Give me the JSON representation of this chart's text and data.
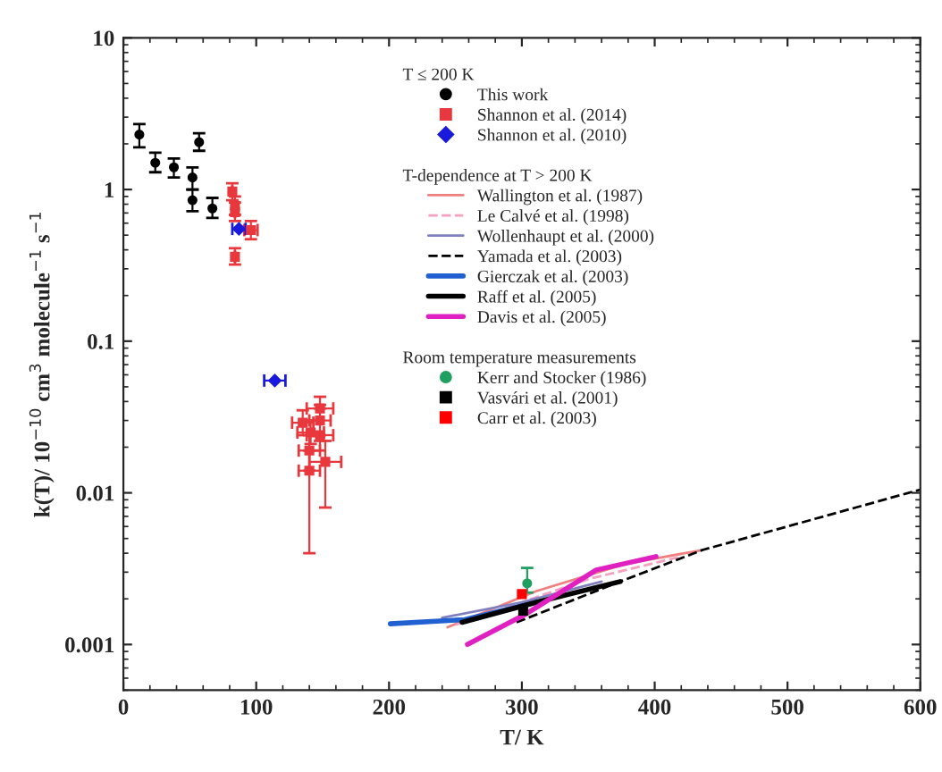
{
  "chart_data": {
    "type": "scatter",
    "xlabel": "T/ K",
    "ylabel": "k(T)/ 10$^{−10}$ cm$^{3}$ molecule$^{−1}$ s$^{−1}$",
    "xlim": [
      0,
      600
    ],
    "xticks": [
      0,
      100,
      200,
      300,
      400,
      500,
      600
    ],
    "ylim": [
      0.0005,
      10
    ],
    "yticks": [
      0.001,
      0.01,
      0.1,
      1,
      10
    ],
    "log": true,
    "grid": false,
    "legend": "top right",
    "annotations": [
      "T ≤ 200 K",
      "T-dependence at T > 200 K",
      "Room temperature measurements"
    ],
    "series": [
      {
        "name": "This work",
        "marker": "circle",
        "color": "#000000",
        "x": [
          12,
          24,
          38,
          52,
          52,
          57,
          67
        ],
        "values": [
          2.3,
          1.5,
          1.4,
          1.2,
          0.85,
          2.05,
          0.75
        ],
        "errors": [
          [
            1.9,
            2.7
          ],
          [
            1.3,
            1.75
          ],
          [
            1.2,
            1.6
          ],
          [
            1.0,
            1.4
          ],
          [
            0.72,
            1.0
          ],
          [
            1.8,
            2.35
          ],
          [
            0.65,
            0.88
          ]
        ]
      },
      {
        "name": "Shannon et al. (2014)",
        "marker": "square",
        "color": "#e8383d",
        "x": [
          82,
          84,
          84,
          96,
          84,
          135,
          141,
          148,
          148,
          148,
          140,
          152,
          140
        ],
        "values": [
          0.97,
          0.78,
          0.71,
          0.54,
          0.36,
          0.029,
          0.025,
          0.036,
          0.03,
          0.024,
          0.019,
          0.016,
          0.014
        ],
        "errors": [
          [
            0.85,
            1.1
          ],
          [
            0.68,
            0.9
          ],
          [
            0.62,
            0.82
          ],
          [
            0.47,
            0.62
          ],
          [
            0.32,
            0.41
          ],
          [
            0.024,
            0.035
          ],
          [
            0.021,
            0.03
          ],
          [
            0.036,
            0.043
          ],
          [
            0.022,
            0.038
          ],
          [
            0.019,
            0.024
          ],
          [
            0.014,
            0.019
          ],
          [
            0.008,
            0.022
          ],
          [
            0.004,
            0.024
          ]
        ],
        "xerrors": [
          null,
          null,
          null,
          5,
          null,
          8,
          10,
          10,
          8,
          10,
          8,
          12,
          8
        ]
      },
      {
        "name": "Shannon et al. (2010)",
        "marker": "diamond",
        "color": "#1a1adc",
        "x": [
          87,
          114
        ],
        "values": [
          0.55,
          0.055
        ],
        "xerrors": [
          5,
          8
        ]
      },
      {
        "name": "Wallington et al. (1987)",
        "type": "line",
        "line_style": "solid",
        "color": "#f08080",
        "x": [
          244,
          311,
          378,
          436
        ],
        "values": [
          0.0013,
          0.00225,
          0.0034,
          0.0042
        ]
      },
      {
        "name": "Le Calvé et al. (1998)",
        "type": "line",
        "line_style": "dashed",
        "color": "#f4a0c0",
        "x": [
          250,
          300,
          350,
          420
        ],
        "values": [
          0.00135,
          0.0019,
          0.0027,
          0.0038
        ]
      },
      {
        "name": "Wollenhaupt et al. (2000)",
        "type": "line",
        "line_style": "solid",
        "color": "#8080c0",
        "x": [
          240,
          300,
          360
        ],
        "values": [
          0.0015,
          0.0019,
          0.0026
        ]
      },
      {
        "name": "Yamada et al. (2003)",
        "type": "line",
        "line_style": "dashed",
        "color": "#000000",
        "x": [
          296,
          369,
          436,
          600
        ],
        "values": [
          0.0014,
          0.0025,
          0.0042,
          0.0105
        ]
      },
      {
        "name": "Gierczak et al. (2003)",
        "type": "line",
        "line_style": "solid",
        "color": "#2060d0",
        "x": [
          201,
          257,
          311
        ],
        "values": [
          0.00137,
          0.00146,
          0.0019
        ]
      },
      {
        "name": "Raff et al. (2005)",
        "type": "line",
        "line_style": "solid",
        "color": "#000000",
        "x": [
          255,
          311,
          374
        ],
        "values": [
          0.0014,
          0.0019,
          0.0026
        ]
      },
      {
        "name": "Davis et al. (2005)",
        "type": "line",
        "line_style": "solid",
        "color": "#e020c0",
        "x": [
          259,
          302,
          356,
          401
        ],
        "values": [
          0.001,
          0.00157,
          0.0031,
          0.0038
        ]
      },
      {
        "name": "Kerr and Stocker (1986)",
        "marker": "circle",
        "color": "#20a060",
        "x": [
          304
        ],
        "values": [
          0.00253
        ],
        "errors": [
          [
            0.0022,
            0.0032
          ]
        ]
      },
      {
        "name": "Vasvári et al. (2001)",
        "marker": "square",
        "color": "#000000",
        "x": [
          301
        ],
        "values": [
          0.00167
        ]
      },
      {
        "name": "Carr et al. (2003)",
        "marker": "square",
        "color": "#ff0000",
        "x": [
          300
        ],
        "values": [
          0.00215
        ]
      }
    ]
  }
}
